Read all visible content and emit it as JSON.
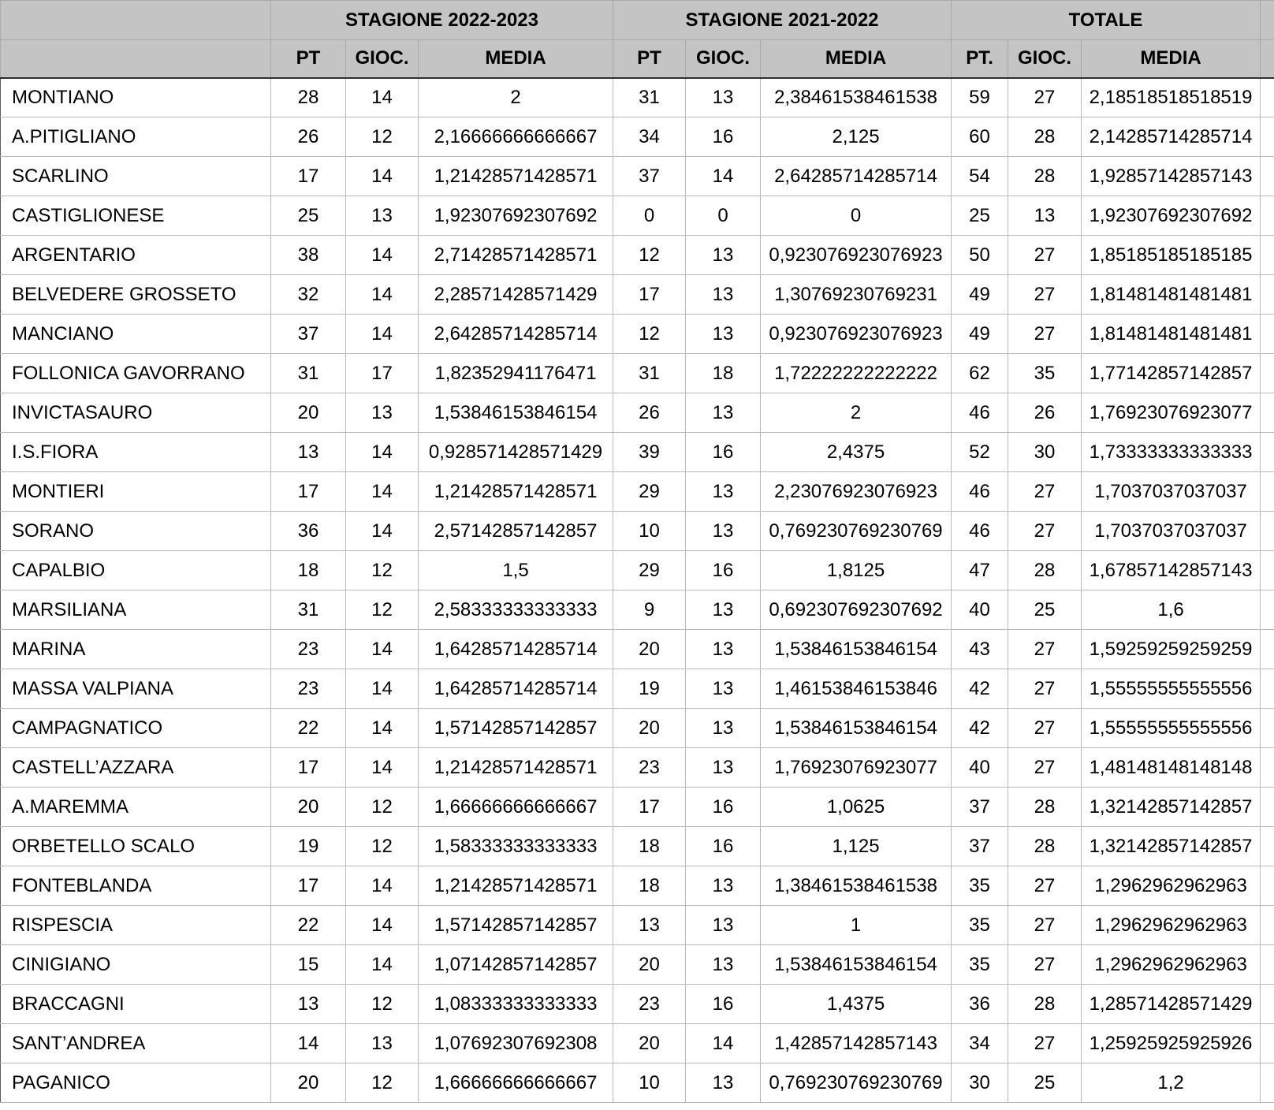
{
  "table": {
    "column_groups": [
      {
        "label": "",
        "span": 1
      },
      {
        "label": "STAGIONE 2022-2023",
        "span": 3
      },
      {
        "label": "STAGIONE 2021-2022",
        "span": 3
      },
      {
        "label": "TOTALE",
        "span": 3
      }
    ],
    "sub_headers": [
      "",
      "PT",
      "GIOC.",
      "MEDIA",
      "PT",
      "GIOC.",
      "MEDIA",
      "PT.",
      "GIOC.",
      "MEDIA"
    ],
    "rows": [
      [
        "MONTIANO",
        "28",
        "14",
        "2",
        "31",
        "13",
        "2,38461538461538",
        "59",
        "27",
        "2,18518518518519"
      ],
      [
        "A.PITIGLIANO",
        "26",
        "12",
        "2,16666666666667",
        "34",
        "16",
        "2,125",
        "60",
        "28",
        "2,14285714285714"
      ],
      [
        "SCARLINO",
        "17",
        "14",
        "1,21428571428571",
        "37",
        "14",
        "2,64285714285714",
        "54",
        "28",
        "1,92857142857143"
      ],
      [
        "CASTIGLIONESE",
        "25",
        "13",
        "1,92307692307692",
        "0",
        "0",
        "0",
        "25",
        "13",
        "1,92307692307692"
      ],
      [
        "ARGENTARIO",
        "38",
        "14",
        "2,71428571428571",
        "12",
        "13",
        "0,923076923076923",
        "50",
        "27",
        "1,85185185185185"
      ],
      [
        "BELVEDERE GROSSETO",
        "32",
        "14",
        "2,28571428571429",
        "17",
        "13",
        "1,30769230769231",
        "49",
        "27",
        "1,81481481481481"
      ],
      [
        "MANCIANO",
        "37",
        "14",
        "2,64285714285714",
        "12",
        "13",
        "0,923076923076923",
        "49",
        "27",
        "1,81481481481481"
      ],
      [
        "FOLLONICA GAVORRANO",
        "31",
        "17",
        "1,82352941176471",
        "31",
        "18",
        "1,72222222222222",
        "62",
        "35",
        "1,77142857142857"
      ],
      [
        "INVICTASAURO",
        "20",
        "13",
        "1,53846153846154",
        "26",
        "13",
        "2",
        "46",
        "26",
        "1,76923076923077"
      ],
      [
        "I.S.FIORA",
        "13",
        "14",
        "0,928571428571429",
        "39",
        "16",
        "2,4375",
        "52",
        "30",
        "1,73333333333333"
      ],
      [
        "MONTIERI",
        "17",
        "14",
        "1,21428571428571",
        "29",
        "13",
        "2,23076923076923",
        "46",
        "27",
        "1,7037037037037"
      ],
      [
        "SORANO",
        "36",
        "14",
        "2,57142857142857",
        "10",
        "13",
        "0,769230769230769",
        "46",
        "27",
        "1,7037037037037"
      ],
      [
        "CAPALBIO",
        "18",
        "12",
        "1,5",
        "29",
        "16",
        "1,8125",
        "47",
        "28",
        "1,67857142857143"
      ],
      [
        "MARSILIANA",
        "31",
        "12",
        "2,58333333333333",
        "9",
        "13",
        "0,692307692307692",
        "40",
        "25",
        "1,6"
      ],
      [
        "MARINA",
        "23",
        "14",
        "1,64285714285714",
        "20",
        "13",
        "1,53846153846154",
        "43",
        "27",
        "1,59259259259259"
      ],
      [
        "MASSA VALPIANA",
        "23",
        "14",
        "1,64285714285714",
        "19",
        "13",
        "1,46153846153846",
        "42",
        "27",
        "1,55555555555556"
      ],
      [
        "CAMPAGNATICO",
        "22",
        "14",
        "1,57142857142857",
        "20",
        "13",
        "1,53846153846154",
        "42",
        "27",
        "1,55555555555556"
      ],
      [
        "CASTELL’AZZARA",
        "17",
        "14",
        "1,21428571428571",
        "23",
        "13",
        "1,76923076923077",
        "40",
        "27",
        "1,48148148148148"
      ],
      [
        "A.MAREMMA",
        "20",
        "12",
        "1,66666666666667",
        "17",
        "16",
        "1,0625",
        "37",
        "28",
        "1,32142857142857"
      ],
      [
        "ORBETELLO SCALO",
        "19",
        "12",
        "1,58333333333333",
        "18",
        "16",
        "1,125",
        "37",
        "28",
        "1,32142857142857"
      ],
      [
        "FONTEBLANDA",
        "17",
        "14",
        "1,21428571428571",
        "18",
        "13",
        "1,38461538461538",
        "35",
        "27",
        "1,2962962962963"
      ],
      [
        "RISPESCIA",
        "22",
        "14",
        "1,57142857142857",
        "13",
        "13",
        "1",
        "35",
        "27",
        "1,2962962962963"
      ],
      [
        "CINIGIANO",
        "15",
        "14",
        "1,07142857142857",
        "20",
        "13",
        "1,53846153846154",
        "35",
        "27",
        "1,2962962962963"
      ],
      [
        "BRACCAGNI",
        "13",
        "12",
        "1,08333333333333",
        "23",
        "16",
        "1,4375",
        "36",
        "28",
        "1,28571428571429"
      ],
      [
        "SANT’ANDREA",
        "14",
        "13",
        "1,07692307692308",
        "20",
        "14",
        "1,42857142857143",
        "34",
        "27",
        "1,25925925925926"
      ],
      [
        "PAGANICO",
        "20",
        "12",
        "1,66666666666667",
        "10",
        "13",
        "0,769230769230769",
        "30",
        "25",
        "1,2"
      ]
    ]
  },
  "colors": {
    "header_background": "#c4c4c4",
    "body_background": "#ffffff",
    "grid_line": "#b9b9b9",
    "header_grid_line": "#a9a9a9",
    "header_bottom_rule": "#2e2e2e",
    "outer_left_border": "#5a5a5a",
    "text": "#000000"
  }
}
